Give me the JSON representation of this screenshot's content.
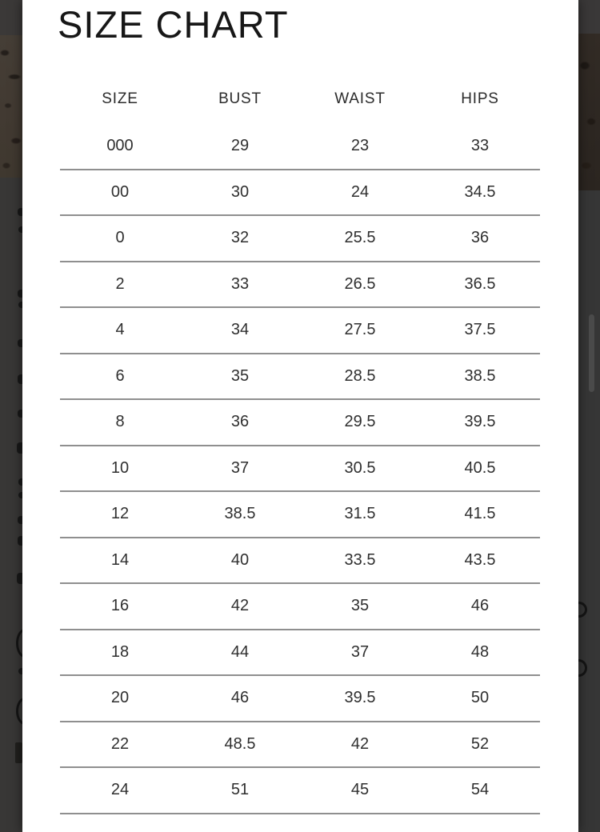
{
  "modal": {
    "title": "SIZE CHART",
    "size_chart": {
      "type": "table",
      "columns": [
        "SIZE",
        "BUST",
        "WAIST",
        "HIPS"
      ],
      "rows": [
        [
          "000",
          "29",
          "23",
          "33"
        ],
        [
          "00",
          "30",
          "24",
          "34.5"
        ],
        [
          "0",
          "32",
          "25.5",
          "36"
        ],
        [
          "2",
          "33",
          "26.5",
          "36.5"
        ],
        [
          "4",
          "34",
          "27.5",
          "37.5"
        ],
        [
          "6",
          "35",
          "28.5",
          "38.5"
        ],
        [
          "8",
          "36",
          "29.5",
          "39.5"
        ],
        [
          "10",
          "37",
          "30.5",
          "40.5"
        ],
        [
          "12",
          "38.5",
          "31.5",
          "41.5"
        ],
        [
          "14",
          "40",
          "33.5",
          "43.5"
        ],
        [
          "16",
          "42",
          "35",
          "46"
        ],
        [
          "18",
          "44",
          "37",
          "48"
        ],
        [
          "20",
          "46",
          "39.5",
          "50"
        ],
        [
          "22",
          "48.5",
          "42",
          "52"
        ],
        [
          "24",
          "51",
          "45",
          "54"
        ]
      ]
    }
  },
  "colors": {
    "modal_background": "#ffffff",
    "table_text": "#2f2f2f",
    "title_text": "#171717",
    "separator": "#8f8f8f",
    "backdrop_gray": "#373736",
    "backdrop_photo_brown": "#423a32"
  }
}
